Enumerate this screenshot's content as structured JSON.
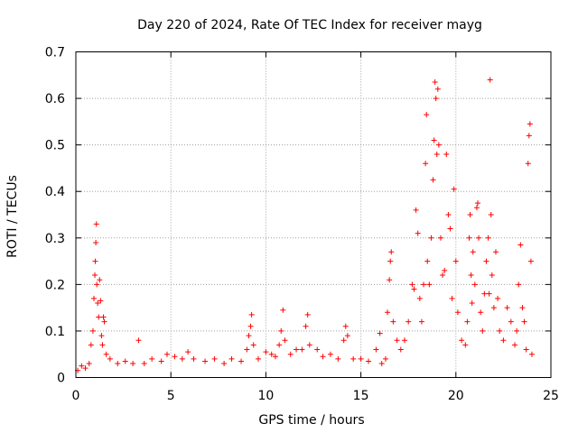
{
  "chart_data": {
    "type": "scatter",
    "title": "Day 220 of 2024, Rate Of TEC Index for receiver mayg",
    "xlabel": "GPS time / hours",
    "ylabel": "ROTI / TECUs",
    "xlim": [
      0,
      25
    ],
    "ylim": [
      0,
      0.7
    ],
    "xticks": [
      "0",
      "5",
      "10",
      "15",
      "20",
      "25"
    ],
    "yticks": [
      "0",
      "0.1",
      "0.2",
      "0.3",
      "0.4",
      "0.5",
      "0.6",
      "0.7"
    ],
    "grid": true,
    "marker": "plus",
    "series": [
      {
        "name": "ROTI",
        "color": "#ff0000",
        "points": [
          [
            0.1,
            0.015
          ],
          [
            0.3,
            0.025
          ],
          [
            0.5,
            0.02
          ],
          [
            0.7,
            0.03
          ],
          [
            0.8,
            0.07
          ],
          [
            0.9,
            0.1
          ],
          [
            0.95,
            0.17
          ],
          [
            1.0,
            0.22
          ],
          [
            1.02,
            0.25
          ],
          [
            1.05,
            0.29
          ],
          [
            1.08,
            0.33
          ],
          [
            1.1,
            0.2
          ],
          [
            1.15,
            0.16
          ],
          [
            1.2,
            0.13
          ],
          [
            1.25,
            0.21
          ],
          [
            1.3,
            0.165
          ],
          [
            1.35,
            0.09
          ],
          [
            1.4,
            0.07
          ],
          [
            1.45,
            0.13
          ],
          [
            1.5,
            0.12
          ],
          [
            1.6,
            0.05
          ],
          [
            1.8,
            0.04
          ],
          [
            2.2,
            0.03
          ],
          [
            2.6,
            0.035
          ],
          [
            3.0,
            0.03
          ],
          [
            3.3,
            0.08
          ],
          [
            3.6,
            0.03
          ],
          [
            4.0,
            0.04
          ],
          [
            4.5,
            0.035
          ],
          [
            4.8,
            0.05
          ],
          [
            5.2,
            0.045
          ],
          [
            5.6,
            0.04
          ],
          [
            5.9,
            0.055
          ],
          [
            6.2,
            0.04
          ],
          [
            6.8,
            0.035
          ],
          [
            7.3,
            0.04
          ],
          [
            7.8,
            0.03
          ],
          [
            8.2,
            0.04
          ],
          [
            8.7,
            0.035
          ],
          [
            9.0,
            0.06
          ],
          [
            9.1,
            0.09
          ],
          [
            9.2,
            0.11
          ],
          [
            9.25,
            0.135
          ],
          [
            9.35,
            0.07
          ],
          [
            9.6,
            0.04
          ],
          [
            10.0,
            0.055
          ],
          [
            10.3,
            0.05
          ],
          [
            10.5,
            0.045
          ],
          [
            10.7,
            0.07
          ],
          [
            10.8,
            0.1
          ],
          [
            10.9,
            0.145
          ],
          [
            11.0,
            0.08
          ],
          [
            11.3,
            0.05
          ],
          [
            11.6,
            0.06
          ],
          [
            11.9,
            0.06
          ],
          [
            12.1,
            0.11
          ],
          [
            12.2,
            0.135
          ],
          [
            12.3,
            0.07
          ],
          [
            12.7,
            0.06
          ],
          [
            13.0,
            0.045
          ],
          [
            13.4,
            0.05
          ],
          [
            13.8,
            0.04
          ],
          [
            14.1,
            0.08
          ],
          [
            14.2,
            0.11
          ],
          [
            14.3,
            0.09
          ],
          [
            14.6,
            0.04
          ],
          [
            15.0,
            0.04
          ],
          [
            15.4,
            0.035
          ],
          [
            15.8,
            0.06
          ],
          [
            16.0,
            0.095
          ],
          [
            16.1,
            0.03
          ],
          [
            16.3,
            0.04
          ],
          [
            16.4,
            0.14
          ],
          [
            16.5,
            0.21
          ],
          [
            16.55,
            0.25
          ],
          [
            16.6,
            0.27
          ],
          [
            16.7,
            0.12
          ],
          [
            16.9,
            0.08
          ],
          [
            17.1,
            0.06
          ],
          [
            17.3,
            0.08
          ],
          [
            17.5,
            0.12
          ],
          [
            17.7,
            0.2
          ],
          [
            17.8,
            0.19
          ],
          [
            17.9,
            0.36
          ],
          [
            18.0,
            0.31
          ],
          [
            18.1,
            0.17
          ],
          [
            18.2,
            0.12
          ],
          [
            18.3,
            0.2
          ],
          [
            18.4,
            0.46
          ],
          [
            18.45,
            0.565
          ],
          [
            18.5,
            0.25
          ],
          [
            18.6,
            0.2
          ],
          [
            18.7,
            0.3
          ],
          [
            18.8,
            0.425
          ],
          [
            18.85,
            0.51
          ],
          [
            18.9,
            0.635
          ],
          [
            18.95,
            0.6
          ],
          [
            19.0,
            0.48
          ],
          [
            19.05,
            0.62
          ],
          [
            19.1,
            0.5
          ],
          [
            19.2,
            0.3
          ],
          [
            19.3,
            0.22
          ],
          [
            19.4,
            0.23
          ],
          [
            19.5,
            0.48
          ],
          [
            19.6,
            0.35
          ],
          [
            19.7,
            0.32
          ],
          [
            19.8,
            0.17
          ],
          [
            19.9,
            0.405
          ],
          [
            20.0,
            0.25
          ],
          [
            20.1,
            0.14
          ],
          [
            20.3,
            0.08
          ],
          [
            20.5,
            0.07
          ],
          [
            20.6,
            0.12
          ],
          [
            20.7,
            0.3
          ],
          [
            20.75,
            0.35
          ],
          [
            20.8,
            0.22
          ],
          [
            20.85,
            0.16
          ],
          [
            20.9,
            0.27
          ],
          [
            21.0,
            0.2
          ],
          [
            21.1,
            0.365
          ],
          [
            21.15,
            0.375
          ],
          [
            21.2,
            0.3
          ],
          [
            21.3,
            0.14
          ],
          [
            21.4,
            0.1
          ],
          [
            21.5,
            0.18
          ],
          [
            21.6,
            0.25
          ],
          [
            21.7,
            0.3
          ],
          [
            21.75,
            0.18
          ],
          [
            21.8,
            0.64
          ],
          [
            21.85,
            0.35
          ],
          [
            21.9,
            0.22
          ],
          [
            22.0,
            0.15
          ],
          [
            22.1,
            0.27
          ],
          [
            22.2,
            0.17
          ],
          [
            22.3,
            0.1
          ],
          [
            22.5,
            0.08
          ],
          [
            22.7,
            0.15
          ],
          [
            22.9,
            0.12
          ],
          [
            23.1,
            0.07
          ],
          [
            23.2,
            0.1
          ],
          [
            23.3,
            0.2
          ],
          [
            23.4,
            0.285
          ],
          [
            23.5,
            0.15
          ],
          [
            23.6,
            0.12
          ],
          [
            23.7,
            0.06
          ],
          [
            23.8,
            0.46
          ],
          [
            23.85,
            0.52
          ],
          [
            23.9,
            0.545
          ],
          [
            23.95,
            0.25
          ],
          [
            24.0,
            0.05
          ]
        ]
      }
    ]
  }
}
